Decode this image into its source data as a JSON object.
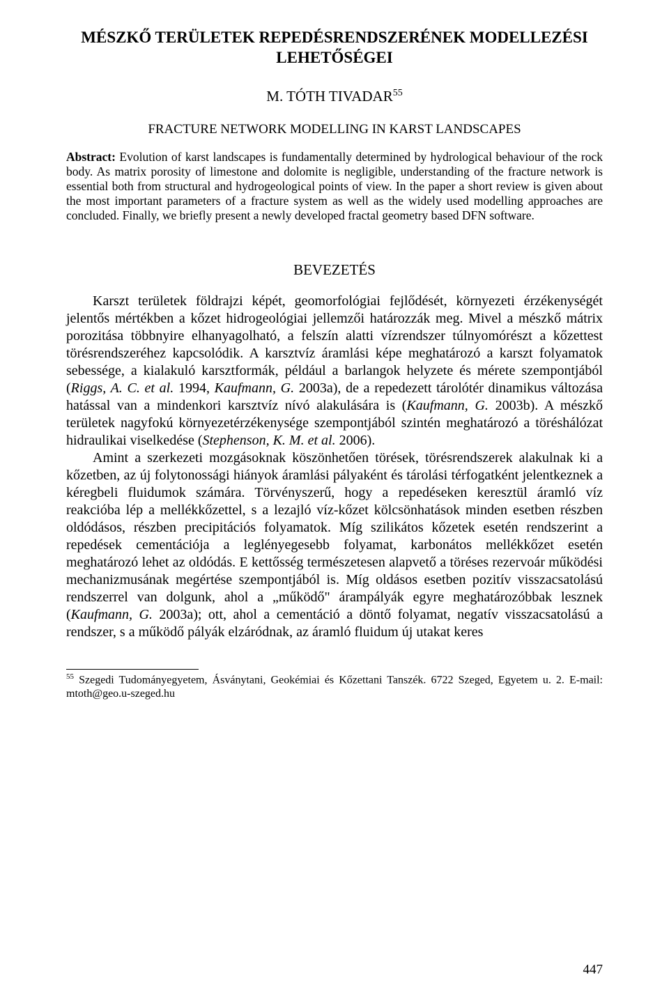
{
  "title": "MÉSZKŐ TERÜLETEK REPEDÉSRENDSZERÉNEK MODELLEZÉSI LEHETŐSÉGEI",
  "author": "M. TÓTH TIVADAR",
  "author_sup": "55",
  "subtitle": "FRACTURE NETWORK MODELLING IN KARST LANDSCAPES",
  "abstract_label": "Abstract:",
  "abstract_text": " Evolution of karst landscapes is fundamentally determined by hydrological behaviour of the rock body. As matrix porosity of limestone and dolomite is negligible, understanding of the fracture network is essential both from structural and hydrogeological points of view. In the paper a short review is given about the most important parameters of a fracture system as well as the widely used modelling approaches are concluded. Finally, we briefly present a newly developed fractal geometry based DFN software.",
  "section_heading": "BEVEZETÉS",
  "para1_pre": "Karszt területek földrajzi képét, geomorfológiai fejlődését, környezeti érzékenységét jelentős mértékben a kőzet hidrogeológiai jellemzői határozzák meg. Mivel a mészkő mátrix porozitása többnyire elhanyagolható, a felszín alatti vízrendszer túlnyomórészt a kőzettest törésrendszeréhez kapcsolódik. A karsztvíz áramlási képe meghatározó a karszt folyamatok sebessége, a kialakuló karsztformák, például a barlangok helyzete és mérete szempontjából (",
  "para1_cite1": "Riggs, A. C. et al.",
  "para1_mid1": " 1994, ",
  "para1_cite2": "Kaufmann, G.",
  "para1_mid2": " 2003a), de a repedezett tárolótér dinamikus változása hatással van a mindenkori karsztvíz nívó alakulására is (",
  "para1_cite3": "Kaufmann, G.",
  "para1_mid3": " 2003b). A mészkő területek nagyfokú környezetérzékenysége szempontjából szintén meghatározó a töréshálózat hidraulikai viselkedése (",
  "para1_cite4": "Stephenson, K. M. et al.",
  "para1_post": " 2006).",
  "para2_pre": "Amint a szerkezeti mozgásoknak köszönhetően törések, törésrendszerek alakulnak ki a kőzetben, az új folytonossági hiányok áramlási pályaként és tárolási térfogatként jelentkeznek a kéregbeli fluidumok számára. Törvényszerű, hogy a repedéseken keresztül áramló víz reakcióba lép a mellékkőzettel, s a lezajló víz-kőzet kölcsönhatások minden esetben részben oldódásos, részben precipitációs folyamatok. Míg szilikátos kőzetek esetén rendszerint a repedések cementációja a leglényegesebb folyamat, karbonátos mellékkőzet esetén meghatározó lehet az oldódás. E kettősség természetesen alapvető a töréses rezervoár működési mechanizmusának megértése szempontjából is. Míg oldásos esetben pozitív visszacsatolású rendszerrel van dolgunk, ahol a „működő\" árampályák egyre meghatározóbbak lesznek (",
  "para2_cite1": "Kaufmann, G.",
  "para2_post": " 2003a); ott, ahol a cementáció a döntő folyamat, negatív visszacsatolású a rendszer, s a működő pályák elzáródnak, az áramló fluidum új utakat keres",
  "footnote_sup": "55",
  "footnote_text": " Szegedi Tudományegyetem, Ásványtani, Geokémiai és Kőzettani Tanszék. 6722 Szeged, Egyetem u. 2. E-mail: mtoth@geo.u-szeged.hu",
  "page_number": "447"
}
